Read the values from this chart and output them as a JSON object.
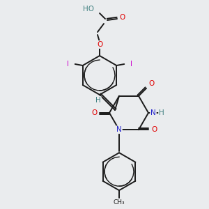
{
  "bg_color": "#eaecee",
  "bond_color": "#1a1a1a",
  "atom_colors": {
    "O": "#e00000",
    "N": "#2222cc",
    "I": "#cc00cc",
    "H": "#408080",
    "C": "#1a1a1a"
  },
  "figsize": [
    3.0,
    3.0
  ],
  "dpi": 100
}
